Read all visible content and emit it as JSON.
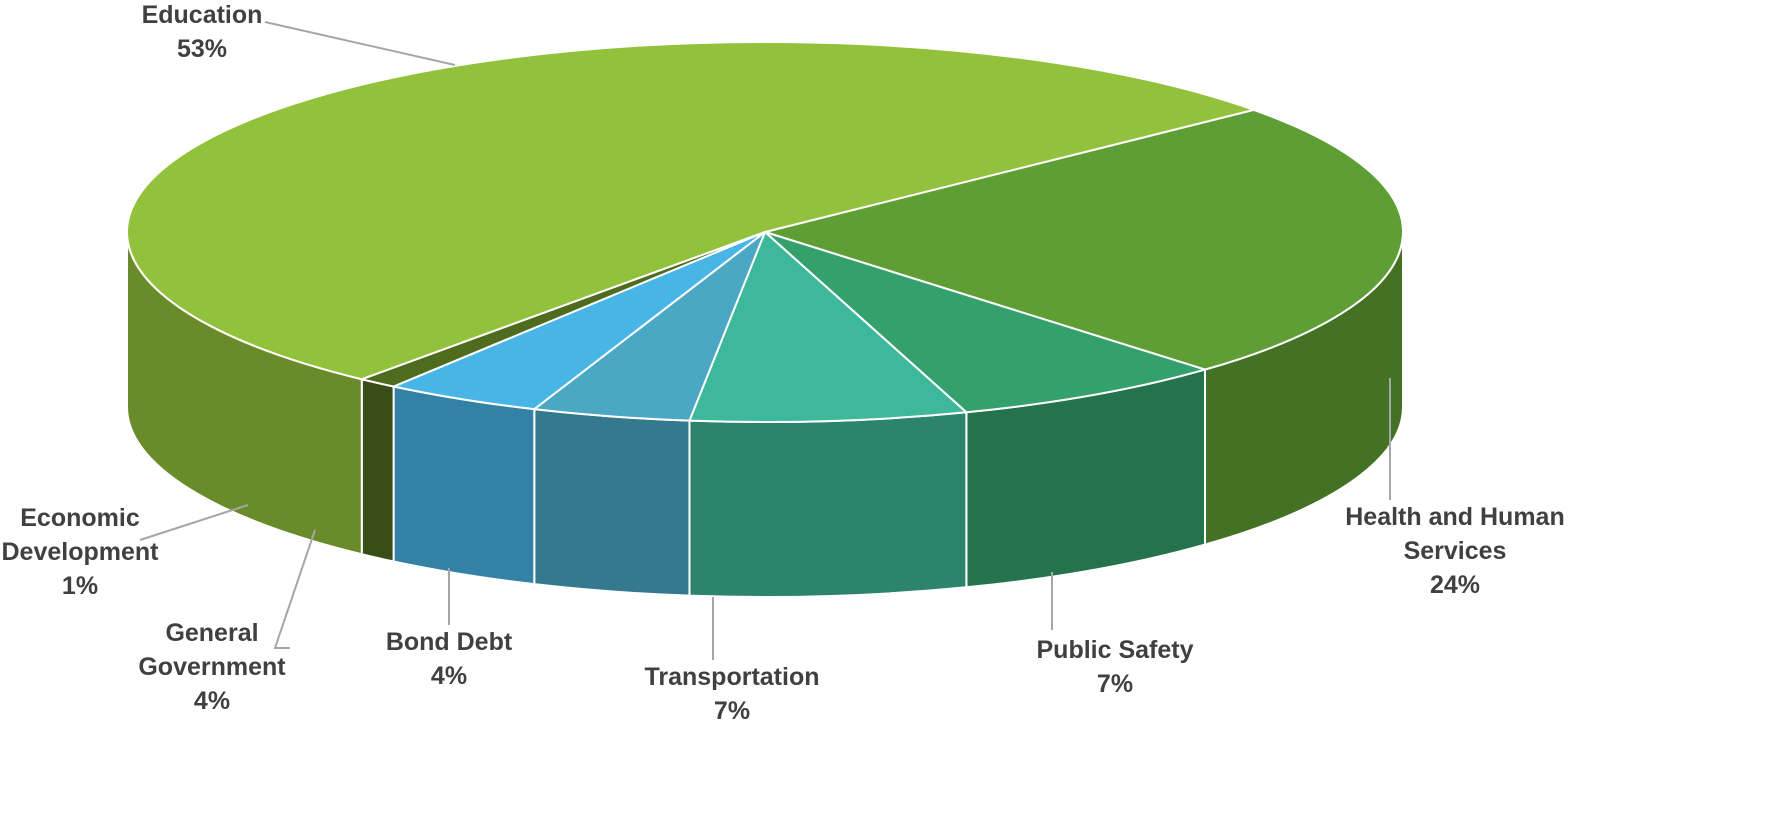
{
  "chart_data": {
    "type": "pie3d",
    "categories": [
      "Health and Human Services",
      "Public Safety",
      "Transportation",
      "Bond Debt",
      "General Government",
      "Economic Development",
      "Education"
    ],
    "values": [
      24,
      7,
      7,
      4,
      4,
      1,
      53
    ],
    "value_labels": [
      "24%",
      "7%",
      "7%",
      "4%",
      "4%",
      "1%",
      "53%"
    ],
    "colors": [
      "#5e9e34",
      "#34a06b",
      "#3db89a",
      "#4aa8c5",
      "#47b5e6",
      "#4f6b1e",
      "#92c13b"
    ]
  }
}
